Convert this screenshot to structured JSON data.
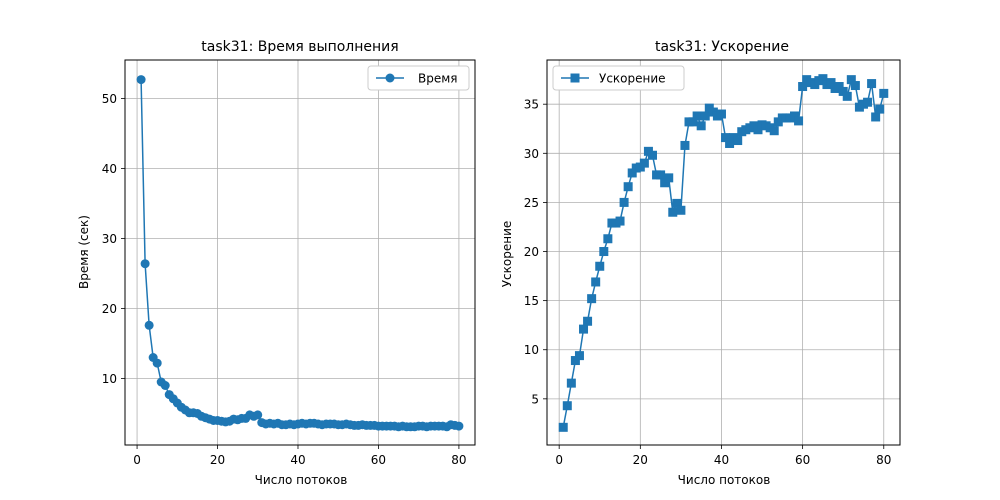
{
  "chart_data": [
    {
      "type": "line",
      "marker": "circle",
      "title": "task31: Время выполнения",
      "xlabel": "Число потоков",
      "ylabel": "Время (сек)",
      "xlim": [
        -3,
        84
      ],
      "ylim": [
        0.5,
        55.5
      ],
      "xticks": [
        0,
        20,
        40,
        60,
        80
      ],
      "yticks": [
        10,
        20,
        30,
        40,
        50
      ],
      "grid": true,
      "legend": "top-right",
      "color": "#1f77b4",
      "series": [
        {
          "name": "Время",
          "x": [
            1,
            2,
            3,
            4,
            5,
            6,
            7,
            8,
            9,
            10,
            11,
            12,
            13,
            14,
            15,
            16,
            17,
            18,
            19,
            20,
            21,
            22,
            23,
            24,
            25,
            26,
            27,
            28,
            29,
            30,
            31,
            32,
            33,
            34,
            35,
            36,
            37,
            38,
            39,
            40,
            41,
            42,
            43,
            44,
            45,
            46,
            47,
            48,
            49,
            50,
            51,
            52,
            53,
            54,
            55,
            56,
            57,
            58,
            59,
            60,
            61,
            62,
            63,
            64,
            65,
            66,
            67,
            68,
            69,
            70,
            71,
            72,
            73,
            74,
            75,
            76,
            77,
            78,
            79,
            80
          ],
          "y": [
            52.7,
            26.4,
            17.6,
            13.0,
            12.2,
            9.5,
            9.0,
            7.7,
            7.1,
            6.5,
            5.9,
            5.5,
            5.1,
            5.1,
            5.0,
            4.6,
            4.4,
            4.2,
            4.0,
            4.0,
            3.9,
            3.8,
            3.9,
            4.2,
            4.1,
            4.3,
            4.3,
            4.8,
            4.6,
            4.8,
            3.7,
            3.5,
            3.6,
            3.5,
            3.6,
            3.4,
            3.4,
            3.5,
            3.4,
            3.5,
            3.6,
            3.5,
            3.6,
            3.6,
            3.5,
            3.4,
            3.5,
            3.5,
            3.5,
            3.4,
            3.4,
            3.5,
            3.4,
            3.3,
            3.3,
            3.4,
            3.3,
            3.3,
            3.3,
            3.2,
            3.2,
            3.2,
            3.2,
            3.2,
            3.1,
            3.2,
            3.1,
            3.1,
            3.1,
            3.2,
            3.2,
            3.1,
            3.2,
            3.2,
            3.2,
            3.2,
            3.1,
            3.4,
            3.3,
            3.2
          ]
        }
      ]
    },
    {
      "type": "line",
      "marker": "square",
      "title": "task31: Ускорение",
      "xlabel": "Число потоков",
      "ylabel": "Ускорение",
      "xlim": [
        -3,
        84
      ],
      "ylim": [
        0.3,
        39.5
      ],
      "xticks": [
        0,
        20,
        40,
        60,
        80
      ],
      "yticks": [
        5,
        10,
        15,
        20,
        25,
        30,
        35
      ],
      "grid": true,
      "legend": "top-left",
      "color": "#1f77b4",
      "series": [
        {
          "name": "Ускорение",
          "x": [
            1,
            2,
            3,
            4,
            5,
            6,
            7,
            8,
            9,
            10,
            11,
            12,
            13,
            14,
            15,
            16,
            17,
            18,
            19,
            20,
            21,
            22,
            23,
            24,
            25,
            26,
            27,
            28,
            29,
            30,
            31,
            32,
            33,
            34,
            35,
            36,
            37,
            38,
            39,
            40,
            41,
            42,
            43,
            44,
            45,
            46,
            47,
            48,
            49,
            50,
            51,
            52,
            53,
            54,
            55,
            56,
            57,
            58,
            59,
            60,
            61,
            62,
            63,
            64,
            65,
            66,
            67,
            68,
            69,
            70,
            71,
            72,
            73,
            74,
            75,
            76,
            77,
            78,
            79,
            80
          ],
          "y": [
            2.1,
            4.3,
            6.6,
            8.9,
            9.4,
            12.1,
            12.9,
            15.2,
            16.9,
            18.5,
            20.0,
            21.3,
            22.9,
            22.9,
            23.1,
            25.0,
            26.6,
            28.0,
            28.5,
            28.6,
            29.0,
            30.2,
            29.8,
            27.8,
            27.8,
            27.0,
            27.5,
            24.0,
            24.9,
            24.2,
            30.8,
            33.2,
            33.2,
            33.8,
            32.8,
            33.8,
            34.6,
            34.2,
            33.8,
            34.0,
            31.6,
            31.0,
            31.6,
            31.3,
            32.2,
            32.4,
            32.6,
            32.8,
            32.4,
            32.9,
            32.8,
            32.6,
            32.3,
            33.2,
            33.6,
            33.6,
            33.6,
            33.8,
            33.3,
            36.8,
            37.5,
            37.2,
            37.0,
            37.4,
            37.6,
            37.0,
            37.2,
            36.6,
            36.8,
            36.3,
            35.8,
            37.5,
            36.9,
            34.7,
            35.0,
            35.2,
            37.1,
            33.7,
            34.5,
            36.1
          ]
        }
      ]
    }
  ]
}
